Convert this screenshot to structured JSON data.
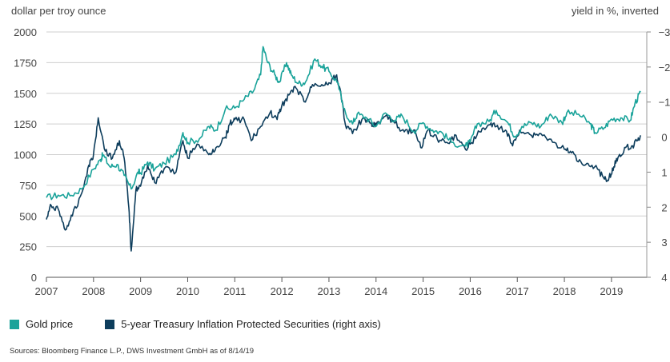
{
  "chart_data": {
    "type": "line",
    "left_axis_title": "dollar per troy ounce",
    "right_axis_title": "yield in %, inverted",
    "left_ylim": [
      0,
      2000
    ],
    "left_ticks": [
      "0",
      "250",
      "500",
      "750",
      "1000",
      "1250",
      "1500",
      "1750",
      "2000"
    ],
    "right_ylim": [
      4,
      -3
    ],
    "right_inverted": true,
    "right_ticks": [
      "4",
      "3",
      "2",
      "1",
      "0",
      "−1",
      "−2",
      "−3"
    ],
    "xlim": [
      2007,
      2019.75
    ],
    "x_ticks": [
      "2007",
      "2008",
      "2009",
      "2010",
      "2011",
      "2012",
      "2013",
      "2014",
      "2015",
      "2016",
      "2017",
      "2018",
      "2019"
    ],
    "grid": "horizontal",
    "legend_position": "bottom-left",
    "series": [
      {
        "name": "Gold price",
        "axis": "left",
        "color": "#1aa39a",
        "points": [
          [
            2007.0,
            650
          ],
          [
            2007.25,
            670
          ],
          [
            2007.5,
            665
          ],
          [
            2007.75,
            720
          ],
          [
            2008.0,
            880
          ],
          [
            2008.15,
            960
          ],
          [
            2008.2,
            1000
          ],
          [
            2008.35,
            900
          ],
          [
            2008.5,
            920
          ],
          [
            2008.65,
            830
          ],
          [
            2008.8,
            720
          ],
          [
            2008.95,
            860
          ],
          [
            2009.0,
            850
          ],
          [
            2009.15,
            940
          ],
          [
            2009.3,
            880
          ],
          [
            2009.5,
            930
          ],
          [
            2009.75,
            1000
          ],
          [
            2009.9,
            1180
          ],
          [
            2010.0,
            1100
          ],
          [
            2010.25,
            1130
          ],
          [
            2010.45,
            1230
          ],
          [
            2010.6,
            1200
          ],
          [
            2010.8,
            1370
          ],
          [
            2011.0,
            1380
          ],
          [
            2011.2,
            1450
          ],
          [
            2011.4,
            1520
          ],
          [
            2011.55,
            1650
          ],
          [
            2011.6,
            1880
          ],
          [
            2011.7,
            1750
          ],
          [
            2011.85,
            1650
          ],
          [
            2011.95,
            1590
          ],
          [
            2012.1,
            1750
          ],
          [
            2012.2,
            1650
          ],
          [
            2012.35,
            1580
          ],
          [
            2012.5,
            1590
          ],
          [
            2012.7,
            1780
          ],
          [
            2012.85,
            1720
          ],
          [
            2013.0,
            1680
          ],
          [
            2013.2,
            1580
          ],
          [
            2013.3,
            1380
          ],
          [
            2013.5,
            1250
          ],
          [
            2013.6,
            1330
          ],
          [
            2013.8,
            1300
          ],
          [
            2014.0,
            1230
          ],
          [
            2014.2,
            1340
          ],
          [
            2014.4,
            1280
          ],
          [
            2014.55,
            1320
          ],
          [
            2014.8,
            1190
          ],
          [
            2015.0,
            1260
          ],
          [
            2015.2,
            1200
          ],
          [
            2015.4,
            1180
          ],
          [
            2015.6,
            1100
          ],
          [
            2015.9,
            1070
          ],
          [
            2016.0,
            1100
          ],
          [
            2016.15,
            1250
          ],
          [
            2016.4,
            1270
          ],
          [
            2016.55,
            1360
          ],
          [
            2016.8,
            1260
          ],
          [
            2016.95,
            1150
          ],
          [
            2017.1,
            1230
          ],
          [
            2017.3,
            1260
          ],
          [
            2017.5,
            1230
          ],
          [
            2017.7,
            1330
          ],
          [
            2017.95,
            1260
          ],
          [
            2018.05,
            1340
          ],
          [
            2018.3,
            1330
          ],
          [
            2018.55,
            1250
          ],
          [
            2018.65,
            1180
          ],
          [
            2018.85,
            1220
          ],
          [
            2019.0,
            1290
          ],
          [
            2019.2,
            1300
          ],
          [
            2019.4,
            1280
          ],
          [
            2019.5,
            1420
          ],
          [
            2019.62,
            1510
          ]
        ]
      },
      {
        "name": "5-year Treasury Inflation Protected Securities (right axis)",
        "axis": "right",
        "color": "#0d3d5c",
        "points": [
          [
            2007.0,
            2.35
          ],
          [
            2007.1,
            1.95
          ],
          [
            2007.25,
            2.05
          ],
          [
            2007.4,
            2.65
          ],
          [
            2007.55,
            2.25
          ],
          [
            2007.75,
            1.6
          ],
          [
            2007.9,
            0.8
          ],
          [
            2008.0,
            0.5
          ],
          [
            2008.1,
            -0.55
          ],
          [
            2008.25,
            0.4
          ],
          [
            2008.4,
            0.6
          ],
          [
            2008.55,
            0.1
          ],
          [
            2008.65,
            0.6
          ],
          [
            2008.75,
            2.0
          ],
          [
            2008.8,
            3.25
          ],
          [
            2008.9,
            1.5
          ],
          [
            2009.0,
            1.4
          ],
          [
            2009.15,
            0.8
          ],
          [
            2009.3,
            1.3
          ],
          [
            2009.5,
            0.9
          ],
          [
            2009.75,
            1.0
          ],
          [
            2009.9,
            0.1
          ],
          [
            2010.0,
            0.6
          ],
          [
            2010.2,
            0.2
          ],
          [
            2010.45,
            0.5
          ],
          [
            2010.6,
            0.3
          ],
          [
            2010.8,
            0.0
          ],
          [
            2010.9,
            -0.4
          ],
          [
            2011.0,
            -0.5
          ],
          [
            2011.2,
            -0.5
          ],
          [
            2011.35,
            0.1
          ],
          [
            2011.55,
            -0.3
          ],
          [
            2011.75,
            -0.7
          ],
          [
            2011.9,
            -0.5
          ],
          [
            2012.0,
            -0.9
          ],
          [
            2012.15,
            -1.2
          ],
          [
            2012.3,
            -1.4
          ],
          [
            2012.5,
            -1.0
          ],
          [
            2012.65,
            -1.5
          ],
          [
            2012.85,
            -1.5
          ],
          [
            2013.0,
            -1.55
          ],
          [
            2013.15,
            -1.75
          ],
          [
            2013.25,
            -1.3
          ],
          [
            2013.35,
            -0.35
          ],
          [
            2013.5,
            -0.1
          ],
          [
            2013.7,
            -0.5
          ],
          [
            2013.9,
            -0.4
          ],
          [
            2014.0,
            -0.35
          ],
          [
            2014.2,
            -0.6
          ],
          [
            2014.4,
            -0.4
          ],
          [
            2014.6,
            -0.15
          ],
          [
            2014.8,
            -0.2
          ],
          [
            2014.95,
            0.3
          ],
          [
            2015.1,
            -0.2
          ],
          [
            2015.3,
            0.05
          ],
          [
            2015.5,
            0.15
          ],
          [
            2015.7,
            -0.05
          ],
          [
            2015.9,
            0.35
          ],
          [
            2016.0,
            0.2
          ],
          [
            2016.2,
            -0.15
          ],
          [
            2016.4,
            -0.35
          ],
          [
            2016.55,
            -0.3
          ],
          [
            2016.75,
            -0.2
          ],
          [
            2016.9,
            0.25
          ],
          [
            2017.05,
            -0.2
          ],
          [
            2017.3,
            -0.05
          ],
          [
            2017.5,
            -0.1
          ],
          [
            2017.75,
            0.15
          ],
          [
            2018.0,
            0.35
          ],
          [
            2018.15,
            0.45
          ],
          [
            2018.35,
            0.7
          ],
          [
            2018.5,
            0.75
          ],
          [
            2018.7,
            0.9
          ],
          [
            2018.85,
            1.2
          ],
          [
            2018.95,
            1.15
          ],
          [
            2019.05,
            0.85
          ],
          [
            2019.15,
            0.55
          ],
          [
            2019.3,
            0.3
          ],
          [
            2019.45,
            0.25
          ],
          [
            2019.55,
            0.1
          ],
          [
            2019.62,
            -0.05
          ]
        ]
      }
    ]
  },
  "legend": {
    "gold_label": "Gold price",
    "tips_label": "5-year Treasury Inflation Protected Securities (right axis)"
  },
  "source": "Sources: Bloomberg Finance L.P., DWS Investment GmbH as of 8/14/19"
}
